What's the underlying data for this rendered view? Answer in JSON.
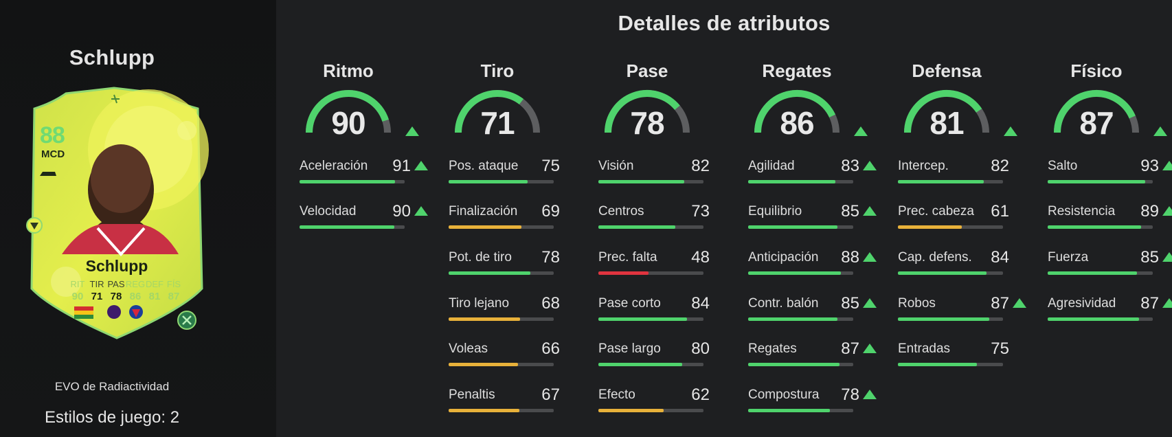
{
  "player": {
    "name": "Schlupp",
    "evo_label": "EVO de Radiactividad",
    "playstyles_label": "Estilos de juego: 2"
  },
  "card": {
    "rating": "88",
    "position": "MCD",
    "name": "Schlupp",
    "stats": [
      {
        "label": "RIT",
        "value": "90",
        "faded": true
      },
      {
        "label": "TIR",
        "value": "71",
        "faded": false
      },
      {
        "label": "PAS",
        "value": "78",
        "faded": false
      },
      {
        "label": "REG",
        "value": "86",
        "faded": true
      },
      {
        "label": "DEF",
        "value": "81",
        "faded": true
      },
      {
        "label": "FÍS",
        "value": "87",
        "faded": true
      }
    ],
    "colors": {
      "base": "#d8e64a",
      "accent": "#5fd97a",
      "border": "#6fd08a"
    },
    "icons": [
      "radioactive-icon",
      "playstyle-icon",
      "boots-icon",
      "flag-icon",
      "league-badge-icon",
      "club-badge-icon"
    ]
  },
  "attributes": {
    "title": "Detalles de atributos",
    "colors": {
      "high": "#4fd36c",
      "mid": "#e8b13a",
      "low": "#e0343f",
      "track": "#4a4b4d"
    },
    "categories": [
      {
        "name": "Ritmo",
        "value": "90",
        "upgraded": true,
        "stats": [
          {
            "label": "Aceleración",
            "value": "91",
            "upgraded": true
          },
          {
            "label": "Velocidad",
            "value": "90",
            "upgraded": true
          }
        ]
      },
      {
        "name": "Tiro",
        "value": "71",
        "upgraded": false,
        "stats": [
          {
            "label": "Pos. ataque",
            "value": "75",
            "upgraded": false
          },
          {
            "label": "Finalización",
            "value": "69",
            "upgraded": false
          },
          {
            "label": "Pot. de tiro",
            "value": "78",
            "upgraded": false
          },
          {
            "label": "Tiro lejano",
            "value": "68",
            "upgraded": false
          },
          {
            "label": "Voleas",
            "value": "66",
            "upgraded": false
          },
          {
            "label": "Penaltis",
            "value": "67",
            "upgraded": false
          }
        ]
      },
      {
        "name": "Pase",
        "value": "78",
        "upgraded": false,
        "stats": [
          {
            "label": "Visión",
            "value": "82",
            "upgraded": false
          },
          {
            "label": "Centros",
            "value": "73",
            "upgraded": false
          },
          {
            "label": "Prec. falta",
            "value": "48",
            "upgraded": false
          },
          {
            "label": "Pase corto",
            "value": "84",
            "upgraded": false
          },
          {
            "label": "Pase largo",
            "value": "80",
            "upgraded": false
          },
          {
            "label": "Efecto",
            "value": "62",
            "upgraded": false
          }
        ]
      },
      {
        "name": "Regates",
        "value": "86",
        "upgraded": true,
        "stats": [
          {
            "label": "Agilidad",
            "value": "83",
            "upgraded": true
          },
          {
            "label": "Equilibrio",
            "value": "85",
            "upgraded": true
          },
          {
            "label": "Anticipación",
            "value": "88",
            "upgraded": true
          },
          {
            "label": "Contr. balón",
            "value": "85",
            "upgraded": true
          },
          {
            "label": "Regates",
            "value": "87",
            "upgraded": true
          },
          {
            "label": "Compostura",
            "value": "78",
            "upgraded": true
          }
        ]
      },
      {
        "name": "Defensa",
        "value": "81",
        "upgraded": true,
        "stats": [
          {
            "label": "Intercep.",
            "value": "82",
            "upgraded": false
          },
          {
            "label": "Prec. cabeza",
            "value": "61",
            "upgraded": false
          },
          {
            "label": "Cap. defens.",
            "value": "84",
            "upgraded": false
          },
          {
            "label": "Robos",
            "value": "87",
            "upgraded": true
          },
          {
            "label": "Entradas",
            "value": "75",
            "upgraded": false
          }
        ]
      },
      {
        "name": "Físico",
        "value": "87",
        "upgraded": true,
        "stats": [
          {
            "label": "Salto",
            "value": "93",
            "upgraded": true
          },
          {
            "label": "Resistencia",
            "value": "89",
            "upgraded": true
          },
          {
            "label": "Fuerza",
            "value": "85",
            "upgraded": true
          },
          {
            "label": "Agresividad",
            "value": "87",
            "upgraded": true
          }
        ]
      }
    ]
  }
}
